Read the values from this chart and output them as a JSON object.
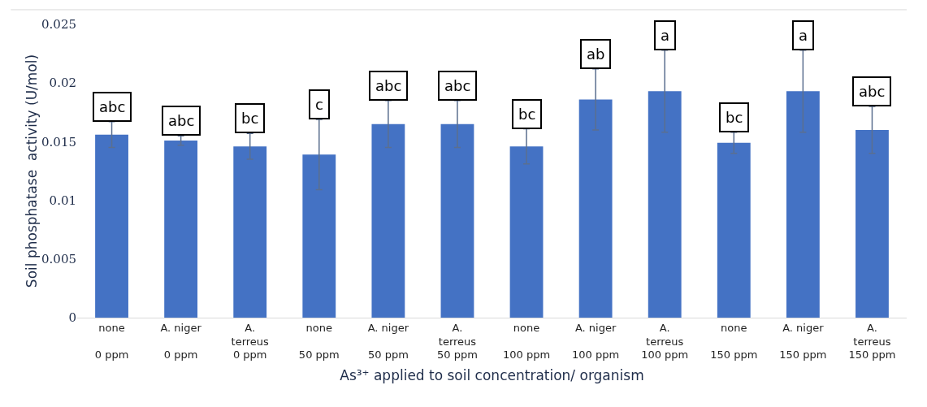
{
  "chart_data": {
    "type": "bar",
    "ylabel": "Soil phosphatase  activity (U/mol)",
    "xlabel": "As³⁺ applied to soil concentration/ organism",
    "categories": [
      "none\n\n0 ppm",
      "A. niger\n\n0 ppm",
      "A.\nterreus\n0 ppm",
      "none\n\n50 ppm",
      "A. niger\n\n50 ppm",
      "A.\nterreus\n50 ppm",
      "none\n\n100 ppm",
      "A. niger\n\n100 ppm",
      "A.\nterreus\n100 ppm",
      "none\n\n150 ppm",
      "A. niger\n\n150 ppm",
      "A.\nterreus\n150 ppm"
    ],
    "values": [
      0.0156,
      0.0151,
      0.0146,
      0.0139,
      0.0165,
      0.0165,
      0.0146,
      0.0186,
      0.0193,
      0.0149,
      0.0193,
      0.016
    ],
    "errors": [
      0.0011,
      0.0004,
      0.0011,
      0.003,
      0.002,
      0.002,
      0.0015,
      0.0026,
      0.0035,
      0.0009,
      0.0035,
      0.002
    ],
    "color": "#4472c4",
    "ylim": [
      0,
      0.025
    ],
    "yticks": [
      0,
      0.005,
      0.01,
      0.015,
      0.02,
      0.025
    ],
    "annotations": [
      {
        "text": "abc",
        "x": "none\n\n0 ppm",
        "y": 0.0167
      },
      {
        "text": "abc",
        "x": "A. niger\n\n0 ppm",
        "y": 0.0155
      },
      {
        "text": "bc",
        "x": "A.\nterreus\n0 ppm",
        "y": 0.0157
      },
      {
        "text": "c",
        "x": "none\n\n50 ppm",
        "y": 0.0169
      },
      {
        "text": "abc",
        "x": "A. niger\n\n50 ppm",
        "y": 0.0185
      },
      {
        "text": "abc",
        "x": "A.\nterreus\n50 ppm",
        "y": 0.0185
      },
      {
        "text": "bc",
        "x": "none\n\n100 ppm",
        "y": 0.0161
      },
      {
        "text": "ab",
        "x": "A. niger\n\n100 ppm",
        "y": 0.0212
      },
      {
        "text": "a",
        "x": "A.\nterreus\n100 ppm",
        "y": 0.0228
      },
      {
        "text": "bc",
        "x": "none\n\n150 ppm",
        "y": 0.0158
      },
      {
        "text": "a",
        "x": "A. niger\n\n150 ppm",
        "y": 0.0228
      },
      {
        "text": "abc",
        "x": "A.\nterreus\n150 ppm",
        "y": 0.018
      }
    ]
  }
}
